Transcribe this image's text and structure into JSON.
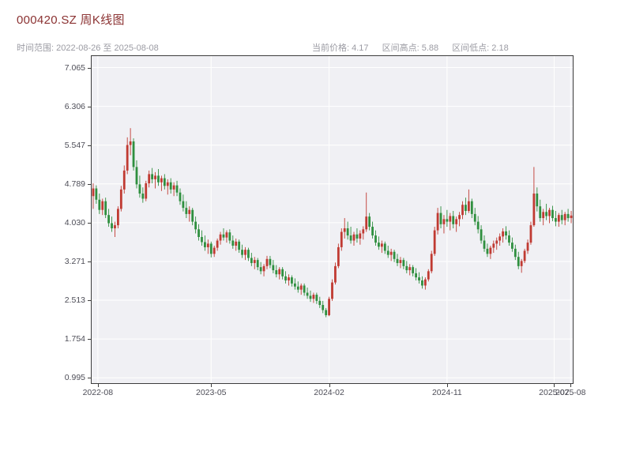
{
  "header": {
    "title": "000420.SZ 周K线图",
    "subtitle_left": "时间范围: 2022-08-26 至 2025-08-08",
    "stats": [
      "当前价格: 4.17",
      "区间高点: 5.88",
      "区间低点: 2.18"
    ],
    "stats_values": {
      "current_price": 4.17,
      "range_high": 5.88,
      "range_low": 2.18
    }
  },
  "chart_data": {
    "type": "candlestick",
    "title": "000420.SZ 周K线图",
    "symbol": "000420.SZ",
    "frequency": "weekly",
    "date_range": {
      "start": "2022-08-26",
      "end": "2025-08-08"
    },
    "ylim": [
      0.89,
      7.29
    ],
    "grid": true,
    "y_ticks": [
      {
        "label": "7.065",
        "value": 7.065
      },
      {
        "label": "6.306",
        "value": 6.306
      },
      {
        "label": "5.547",
        "value": 5.547
      },
      {
        "label": "4.789",
        "value": 4.789
      },
      {
        "label": "4.030",
        "value": 4.03
      },
      {
        "label": "3.271",
        "value": 3.271
      },
      {
        "label": "2.513",
        "value": 2.513
      },
      {
        "label": "1.754",
        "value": 1.754
      },
      {
        "label": "0.995",
        "value": 0.995
      }
    ],
    "x_ticks": [
      {
        "label": "2022-08",
        "week": 1.5
      },
      {
        "label": "2023-05",
        "week": 38
      },
      {
        "label": "2024-02",
        "week": 76
      },
      {
        "label": "2024-11",
        "week": 114
      },
      {
        "label": "2025-07",
        "week": 148.5
      },
      {
        "label": "2025-08",
        "week": 153.8
      }
    ],
    "colors": {
      "up": "#c03a32",
      "down": "#2f8f3f",
      "grid": "#ffffff",
      "panel_bg": "#f0f0f4",
      "spine": "#3d3d3d",
      "tick_label": "#4d4d57"
    },
    "candles_ohlc": [
      [
        4.55,
        4.8,
        4.3,
        4.7
      ],
      [
        4.7,
        4.76,
        4.4,
        4.48
      ],
      [
        4.48,
        4.6,
        4.2,
        4.28
      ],
      [
        4.28,
        4.5,
        4.18,
        4.45
      ],
      [
        4.45,
        4.52,
        4.12,
        4.18
      ],
      [
        4.18,
        4.3,
        3.95,
        4.02
      ],
      [
        4.02,
        4.15,
        3.85,
        3.92
      ],
      [
        3.92,
        4.05,
        3.75,
        3.98
      ],
      [
        3.98,
        4.35,
        3.92,
        4.3
      ],
      [
        4.3,
        4.75,
        4.25,
        4.68
      ],
      [
        4.68,
        5.15,
        4.6,
        5.05
      ],
      [
        5.05,
        5.7,
        4.98,
        5.55
      ],
      [
        5.55,
        5.88,
        5.35,
        5.62
      ],
      [
        5.62,
        5.68,
        5.05,
        5.12
      ],
      [
        5.12,
        5.25,
        4.7,
        4.78
      ],
      [
        4.78,
        4.95,
        4.52,
        4.6
      ],
      [
        4.6,
        4.72,
        4.42,
        4.5
      ],
      [
        4.5,
        4.85,
        4.45,
        4.8
      ],
      [
        4.8,
        5.05,
        4.72,
        4.98
      ],
      [
        4.98,
        5.1,
        4.8,
        4.88
      ],
      [
        4.88,
        5.02,
        4.7,
        4.95
      ],
      [
        4.95,
        5.08,
        4.75,
        4.82
      ],
      [
        4.82,
        4.95,
        4.65,
        4.9
      ],
      [
        4.9,
        4.98,
        4.68,
        4.75
      ],
      [
        4.75,
        4.88,
        4.58,
        4.82
      ],
      [
        4.82,
        4.9,
        4.6,
        4.68
      ],
      [
        4.68,
        4.82,
        4.55,
        4.76
      ],
      [
        4.76,
        4.85,
        4.55,
        4.62
      ],
      [
        4.62,
        4.7,
        4.38,
        4.45
      ],
      [
        4.45,
        4.58,
        4.25,
        4.32
      ],
      [
        4.32,
        4.45,
        4.12,
        4.2
      ],
      [
        4.2,
        4.35,
        4.05,
        4.28
      ],
      [
        4.28,
        4.32,
        3.98,
        4.05
      ],
      [
        4.05,
        4.15,
        3.82,
        3.9
      ],
      [
        3.9,
        4.0,
        3.68,
        3.75
      ],
      [
        3.75,
        3.88,
        3.58,
        3.65
      ],
      [
        3.65,
        3.78,
        3.48,
        3.55
      ],
      [
        3.55,
        3.7,
        3.42,
        3.62
      ],
      [
        3.62,
        3.66,
        3.35,
        3.42
      ],
      [
        3.42,
        3.58,
        3.36,
        3.54
      ],
      [
        3.54,
        3.72,
        3.48,
        3.68
      ],
      [
        3.68,
        3.85,
        3.6,
        3.8
      ],
      [
        3.8,
        3.92,
        3.68,
        3.74
      ],
      [
        3.74,
        3.88,
        3.64,
        3.84
      ],
      [
        3.84,
        3.9,
        3.62,
        3.68
      ],
      [
        3.68,
        3.78,
        3.52,
        3.58
      ],
      [
        3.58,
        3.72,
        3.48,
        3.66
      ],
      [
        3.66,
        3.7,
        3.44,
        3.5
      ],
      [
        3.5,
        3.6,
        3.34,
        3.4
      ],
      [
        3.4,
        3.55,
        3.3,
        3.5
      ],
      [
        3.5,
        3.54,
        3.28,
        3.34
      ],
      [
        3.34,
        3.44,
        3.18,
        3.24
      ],
      [
        3.24,
        3.36,
        3.12,
        3.3
      ],
      [
        3.3,
        3.34,
        3.1,
        3.16
      ],
      [
        3.16,
        3.26,
        3.02,
        3.08
      ],
      [
        3.08,
        3.22,
        2.98,
        3.18
      ],
      [
        3.18,
        3.38,
        3.12,
        3.32
      ],
      [
        3.32,
        3.38,
        3.14,
        3.2
      ],
      [
        3.2,
        3.3,
        3.04,
        3.1
      ],
      [
        3.1,
        3.2,
        2.96,
        3.02
      ],
      [
        3.02,
        3.16,
        2.92,
        3.12
      ],
      [
        3.12,
        3.16,
        2.92,
        2.98
      ],
      [
        2.98,
        3.08,
        2.84,
        2.9
      ],
      [
        2.9,
        3.02,
        2.8,
        2.96
      ],
      [
        2.96,
        3.0,
        2.78,
        2.84
      ],
      [
        2.84,
        2.94,
        2.72,
        2.78
      ],
      [
        2.78,
        2.88,
        2.66,
        2.72
      ],
      [
        2.72,
        2.84,
        2.62,
        2.8
      ],
      [
        2.8,
        2.84,
        2.6,
        2.66
      ],
      [
        2.66,
        2.76,
        2.54,
        2.6
      ],
      [
        2.6,
        2.7,
        2.48,
        2.54
      ],
      [
        2.54,
        2.66,
        2.46,
        2.62
      ],
      [
        2.62,
        2.66,
        2.44,
        2.5
      ],
      [
        2.5,
        2.58,
        2.36,
        2.42
      ],
      [
        2.42,
        2.5,
        2.26,
        2.32
      ],
      [
        2.32,
        2.36,
        2.18,
        2.22
      ],
      [
        2.22,
        2.58,
        2.2,
        2.54
      ],
      [
        2.54,
        2.92,
        2.5,
        2.86
      ],
      [
        2.86,
        3.25,
        2.82,
        3.18
      ],
      [
        3.18,
        3.62,
        3.14,
        3.55
      ],
      [
        3.55,
        3.92,
        3.48,
        3.85
      ],
      [
        3.85,
        4.12,
        3.72,
        3.92
      ],
      [
        3.92,
        4.05,
        3.7,
        3.78
      ],
      [
        3.78,
        3.95,
        3.62,
        3.68
      ],
      [
        3.68,
        3.85,
        3.58,
        3.8
      ],
      [
        3.8,
        3.92,
        3.64,
        3.72
      ],
      [
        3.72,
        3.88,
        3.6,
        3.82
      ],
      [
        3.82,
        3.96,
        3.7,
        3.9
      ],
      [
        3.9,
        4.62,
        3.85,
        4.15
      ],
      [
        4.15,
        4.22,
        3.88,
        3.95
      ],
      [
        3.95,
        4.05,
        3.72,
        3.78
      ],
      [
        3.78,
        3.88,
        3.58,
        3.64
      ],
      [
        3.64,
        3.76,
        3.5,
        3.56
      ],
      [
        3.56,
        3.68,
        3.44,
        3.62
      ],
      [
        3.62,
        3.66,
        3.42,
        3.48
      ],
      [
        3.48,
        3.58,
        3.34,
        3.4
      ],
      [
        3.4,
        3.52,
        3.28,
        3.46
      ],
      [
        3.46,
        3.5,
        3.26,
        3.32
      ],
      [
        3.32,
        3.42,
        3.18,
        3.24
      ],
      [
        3.24,
        3.36,
        3.14,
        3.3
      ],
      [
        3.3,
        3.34,
        3.12,
        3.18
      ],
      [
        3.18,
        3.28,
        3.04,
        3.1
      ],
      [
        3.1,
        3.22,
        3.0,
        3.16
      ],
      [
        3.16,
        3.2,
        2.98,
        3.04
      ],
      [
        3.04,
        3.14,
        2.9,
        2.96
      ],
      [
        2.96,
        3.06,
        2.84,
        2.9
      ],
      [
        2.9,
        2.98,
        2.74,
        2.8
      ],
      [
        2.8,
        2.96,
        2.72,
        2.92
      ],
      [
        2.92,
        3.12,
        2.88,
        3.08
      ],
      [
        3.08,
        3.48,
        3.04,
        3.42
      ],
      [
        3.42,
        3.95,
        3.38,
        3.88
      ],
      [
        3.88,
        4.32,
        3.8,
        4.22
      ],
      [
        4.22,
        4.35,
        3.92,
        4.0
      ],
      [
        4.0,
        4.18,
        3.82,
        4.1
      ],
      [
        4.1,
        4.28,
        3.95,
        4.05
      ],
      [
        4.05,
        4.22,
        3.88,
        4.16
      ],
      [
        4.16,
        4.26,
        3.92,
        4.0
      ],
      [
        4.0,
        4.15,
        3.85,
        4.1
      ],
      [
        4.1,
        4.24,
        3.96,
        4.18
      ],
      [
        4.18,
        4.45,
        4.1,
        4.38
      ],
      [
        4.38,
        4.52,
        4.18,
        4.26
      ],
      [
        4.26,
        4.68,
        4.22,
        4.45
      ],
      [
        4.45,
        4.5,
        4.12,
        4.2
      ],
      [
        4.2,
        4.32,
        3.98,
        4.05
      ],
      [
        4.05,
        4.16,
        3.82,
        3.9
      ],
      [
        3.9,
        3.98,
        3.62,
        3.68
      ],
      [
        3.68,
        3.78,
        3.46,
        3.52
      ],
      [
        3.52,
        3.62,
        3.36,
        3.42
      ],
      [
        3.42,
        3.58,
        3.32,
        3.54
      ],
      [
        3.54,
        3.68,
        3.44,
        3.62
      ],
      [
        3.62,
        3.74,
        3.5,
        3.68
      ],
      [
        3.68,
        3.82,
        3.58,
        3.76
      ],
      [
        3.76,
        3.92,
        3.64,
        3.86
      ],
      [
        3.86,
        3.96,
        3.7,
        3.78
      ],
      [
        3.78,
        3.88,
        3.58,
        3.64
      ],
      [
        3.64,
        3.74,
        3.46,
        3.52
      ],
      [
        3.52,
        3.6,
        3.3,
        3.36
      ],
      [
        3.36,
        3.46,
        3.12,
        3.18
      ],
      [
        3.18,
        3.32,
        3.05,
        3.28
      ],
      [
        3.28,
        3.52,
        3.24,
        3.48
      ],
      [
        3.48,
        3.7,
        3.42,
        3.64
      ],
      [
        3.64,
        4.05,
        3.6,
        3.98
      ],
      [
        3.98,
        5.12,
        3.95,
        4.6
      ],
      [
        4.6,
        4.72,
        4.25,
        4.35
      ],
      [
        4.35,
        4.48,
        4.05,
        4.12
      ],
      [
        4.12,
        4.3,
        3.98,
        4.24
      ],
      [
        4.24,
        4.4,
        4.08,
        4.16
      ],
      [
        4.16,
        4.32,
        4.02,
        4.28
      ],
      [
        4.28,
        4.36,
        4.06,
        4.12
      ],
      [
        4.12,
        4.26,
        3.96,
        4.05
      ],
      [
        4.05,
        4.22,
        3.95,
        4.18
      ],
      [
        4.18,
        4.28,
        4.0,
        4.08
      ],
      [
        4.08,
        4.24,
        3.98,
        4.2
      ],
      [
        4.2,
        4.3,
        4.05,
        4.12
      ],
      [
        4.12,
        4.26,
        4.02,
        4.17
      ]
    ]
  }
}
